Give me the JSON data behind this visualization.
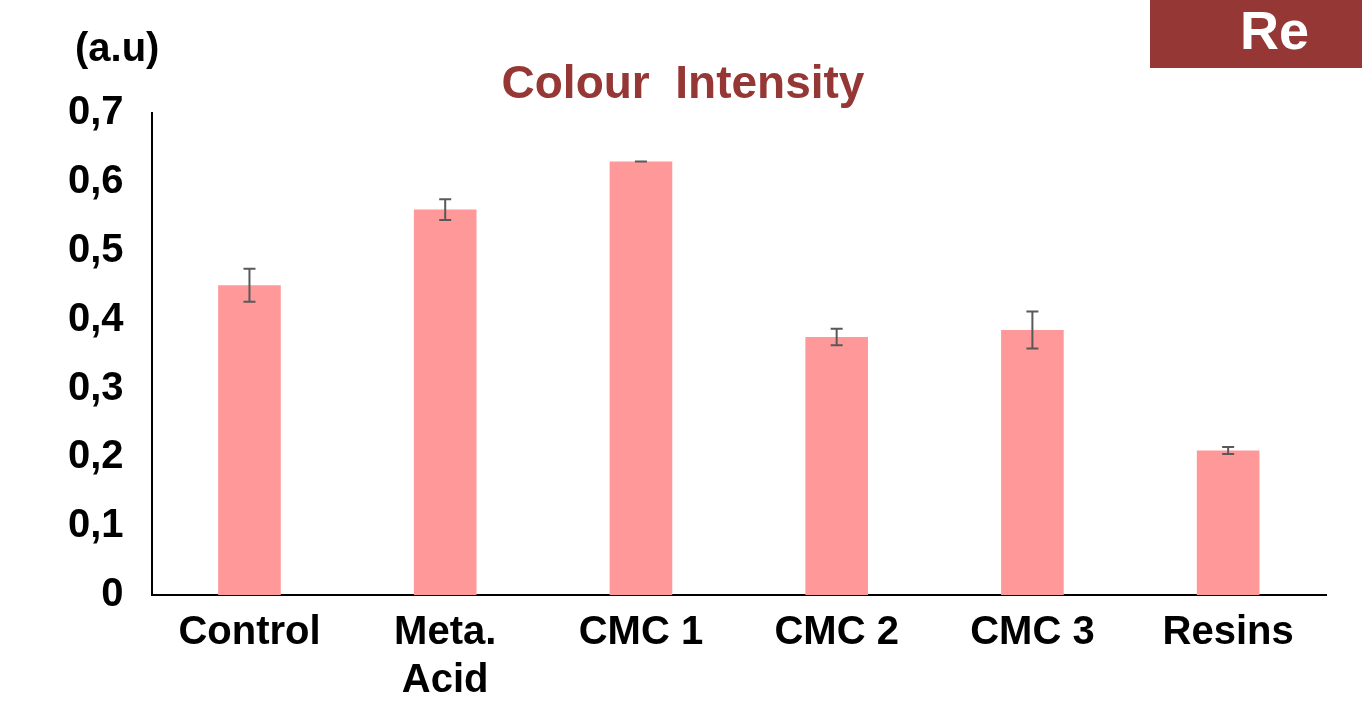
{
  "chart_data": {
    "type": "bar",
    "title": "Colour  Intensity",
    "ylabel": "(a.u)",
    "categories": [
      "Control",
      "Meta. Acid",
      "CMC 1",
      "CMC 2",
      "CMC 3",
      "Resins"
    ],
    "values": [
      0.45,
      0.56,
      0.63,
      0.375,
      0.385,
      0.21
    ],
    "errors": [
      0.024,
      0.015,
      0,
      0.012,
      0.027,
      0.005
    ],
    "color": "#ff9999",
    "ylim": [
      0,
      0.7
    ],
    "yticks": [
      0,
      {
        "value": 0.1,
        "label": "0,1"
      },
      {
        "value": 0.2,
        "label": "0,2"
      },
      {
        "value": 0.3,
        "label": "0,3"
      },
      {
        "value": 0.4,
        "label": "0,4"
      },
      {
        "value": 0.5,
        "label": "0,5"
      },
      {
        "value": 0.6,
        "label": "0,6"
      },
      {
        "value": 0.7,
        "label": "0,7"
      }
    ],
    "grid": false,
    "legend": false,
    "annotations": [
      "Re"
    ]
  }
}
